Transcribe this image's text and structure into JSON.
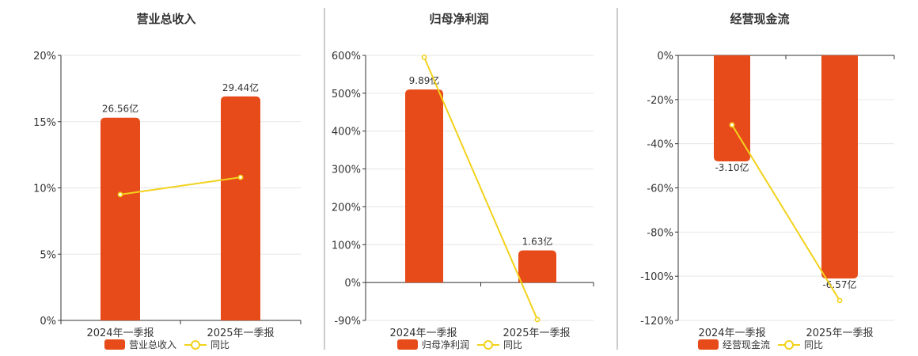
{
  "colors": {
    "bar": "#e84b1a",
    "line": "#f2d21c",
    "grid": "#e6e6e6",
    "axis": "#333333",
    "divider": "#999999"
  },
  "chart_data": [
    {
      "type": "bar",
      "title": "营业总收入",
      "categories": [
        "2024年一季报",
        "2025年一季报"
      ],
      "yticks": [
        "20%",
        "15%",
        "10%",
        "5%",
        "0%"
      ],
      "ylim": [
        0,
        20
      ],
      "bar_values": [
        15.3,
        16.9
      ],
      "bar_labels": [
        "26.56亿",
        "29.44亿"
      ],
      "line_values": [
        9.5,
        10.8
      ],
      "legend": [
        "营业总收入",
        "同比"
      ],
      "grid": true,
      "legend_position": "bottom"
    },
    {
      "type": "bar",
      "title": "归母净利润",
      "categories": [
        "2024年一季报",
        "2025年一季报"
      ],
      "yticks": [
        "600%",
        "500%",
        "400%",
        "300%",
        "200%",
        "100%",
        "0%",
        "-90%"
      ],
      "ylim": [
        -90,
        600
      ],
      "bar_values": [
        510,
        85
      ],
      "bar_labels": [
        "9.89亿",
        "1.63亿"
      ],
      "line_values": [
        595,
        -88
      ],
      "legend": [
        "归母净利润",
        "同比"
      ],
      "grid": true,
      "legend_position": "bottom"
    },
    {
      "type": "bar",
      "title": "经营现金流",
      "categories": [
        "2024年一季报",
        "2025年一季报"
      ],
      "yticks": [
        "0%",
        "-20%",
        "-40%",
        "-60%",
        "-80%",
        "-100%",
        "-120%"
      ],
      "ylim": [
        -120,
        0
      ],
      "bar_values": [
        -48,
        -101
      ],
      "bar_labels": [
        "-3.10亿",
        "-6.57亿"
      ],
      "line_values": [
        -31.5,
        -111
      ],
      "legend": [
        "经营现金流",
        "同比"
      ],
      "grid": true,
      "legend_position": "bottom"
    }
  ]
}
